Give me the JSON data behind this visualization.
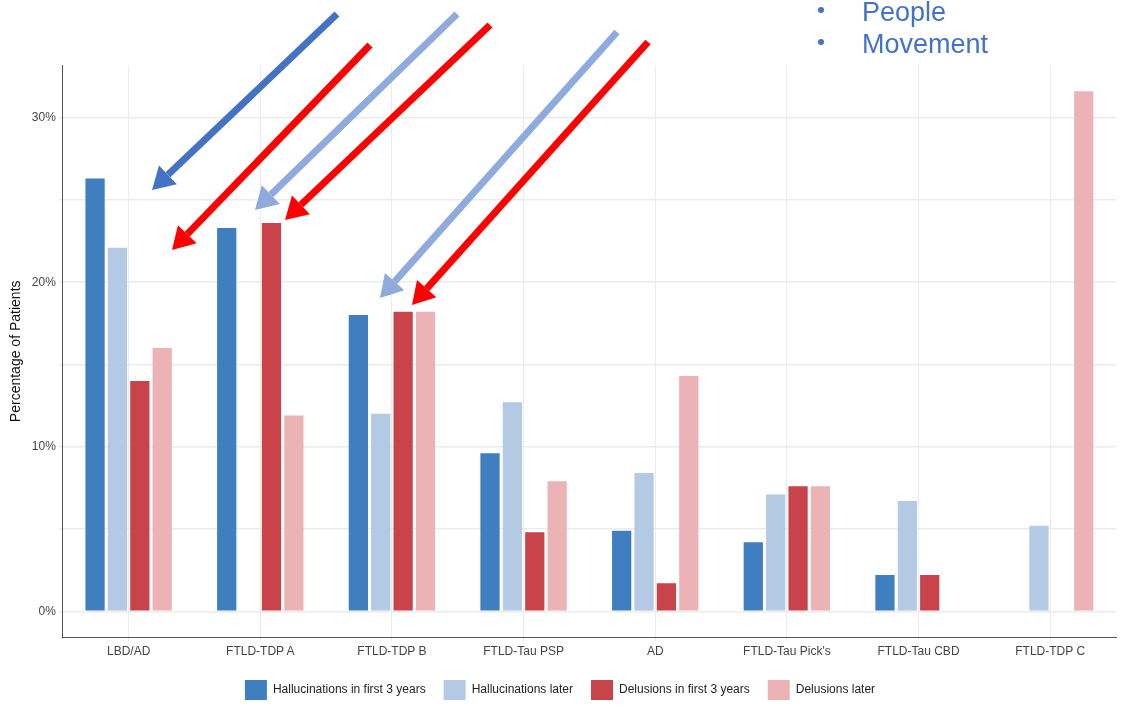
{
  "chart_data": {
    "type": "bar",
    "ylabel": "Percentage of Patients",
    "categories": [
      "LBD/AD",
      "FTLD-TDP A",
      "FTLD-TDP B",
      "FTLD-Tau PSP",
      "AD",
      "FTLD-Tau Pick's",
      "FTLD-Tau CBD",
      "FTLD-TDP C"
    ],
    "series": [
      {
        "name": "Hallucinations in first 3 years",
        "color": "#3f7fbf",
        "values": [
          26.3,
          23.3,
          18.0,
          9.6,
          4.9,
          4.2,
          2.2,
          0
        ]
      },
      {
        "name": "Hallucinations later",
        "color": "#b4cae4",
        "values": [
          22.1,
          0,
          12.0,
          12.7,
          8.4,
          7.1,
          6.7,
          5.2
        ]
      },
      {
        "name": "Delusions in first 3 years",
        "color": "#c9434a",
        "values": [
          14.0,
          23.6,
          18.2,
          4.8,
          1.7,
          7.6,
          2.2,
          0
        ]
      },
      {
        "name": "Delusions later",
        "color": "#ebb3b5",
        "values": [
          16.0,
          11.9,
          18.2,
          7.9,
          14.3,
          7.6,
          0,
          31.6
        ]
      }
    ],
    "ylim": [
      -1.6,
      33.2
    ],
    "yticks": [
      {
        "value": 0,
        "label": "0%"
      },
      {
        "value": 5,
        "label": null
      },
      {
        "value": 10,
        "label": "10%"
      },
      {
        "value": 15,
        "label": null
      },
      {
        "value": 20,
        "label": "20%"
      },
      {
        "value": 25,
        "label": null
      },
      {
        "value": 30,
        "label": "30%"
      }
    ],
    "grid": true,
    "legend": "bottom",
    "annotations": [
      "People",
      "Movement"
    ]
  }
}
